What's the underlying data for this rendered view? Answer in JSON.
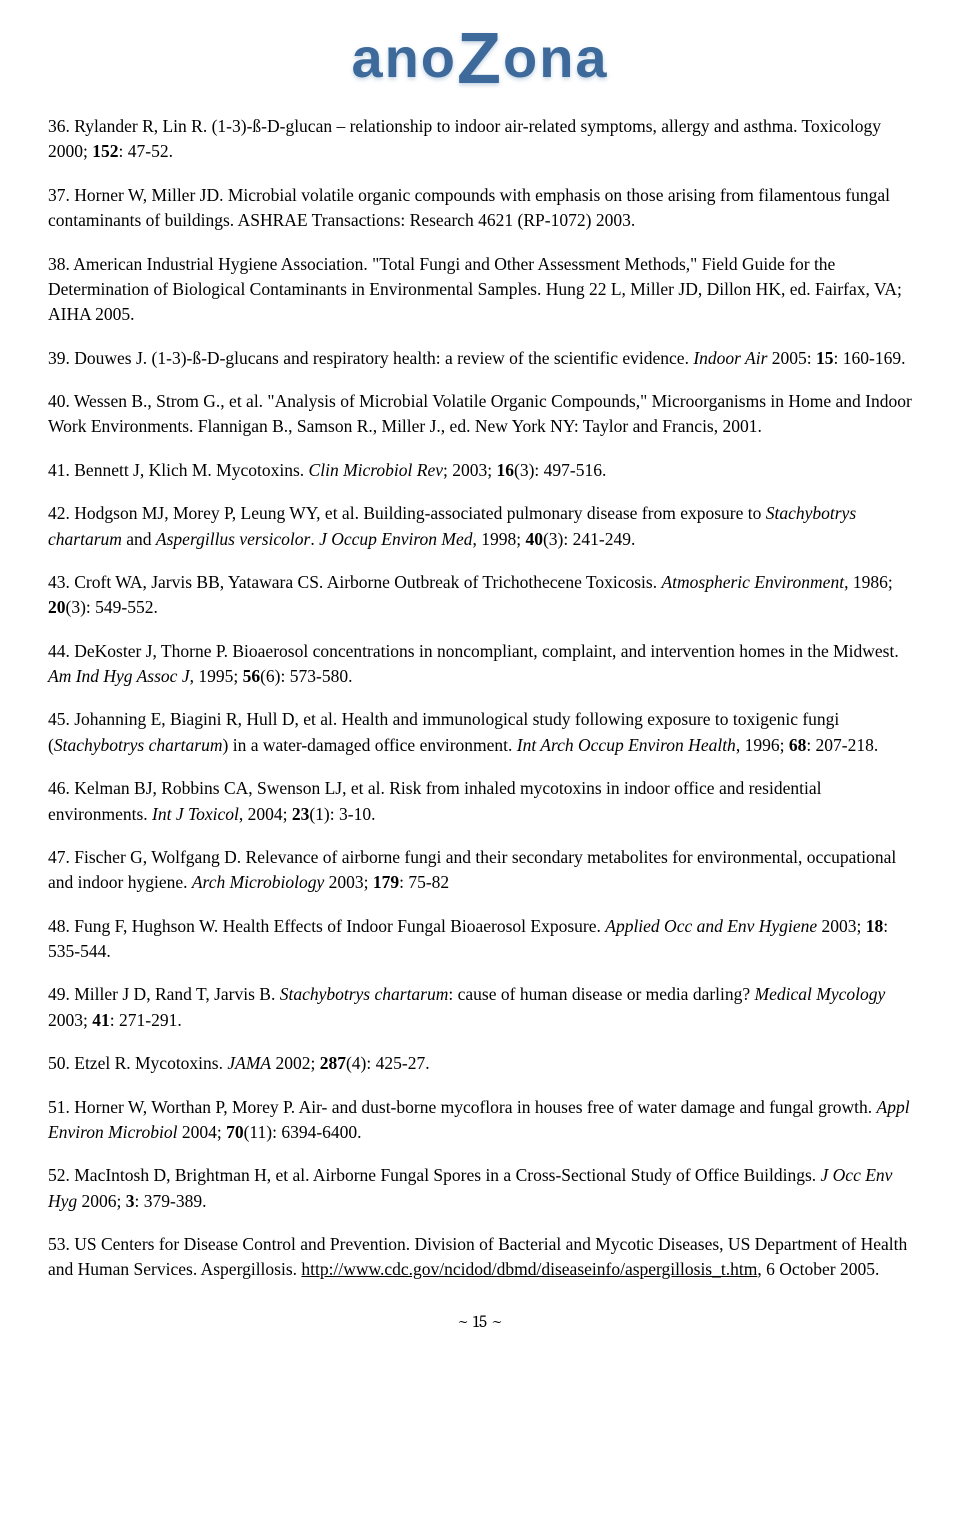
{
  "logo": {
    "part1": "ano",
    "mid": "Z",
    "part2": "ona"
  },
  "refs": {
    "r36": "36. Rylander R, Lin R. (1-3)-ß-D-glucan – relationship to indoor air-related symptoms, allergy and asthma. Toxicology 2000; <b>152</b>: 47-52.",
    "r37": "37. Horner W, Miller JD. Microbial volatile organic compounds with emphasis on those arising from filamentous fungal contaminants of buildings. ASHRAE Transactions: Research 4621 (RP-1072) 2003.",
    "r38": "38. American Industrial Hygiene Association. \"Total Fungi and Other Assessment Methods,\" Field Guide for the Determination of Biological Contaminants in Environmental Samples. Hung 22 L, Miller JD, Dillon HK, ed. Fairfax, VA; AIHA 2005.",
    "r39": "39. Douwes J. (1-3)-ß-D-glucans and respiratory health: a review of the scientific evidence. <em>Indoor Air</em> 2005: <b>15</b>: 160-169.",
    "r40": "40. Wessen B., Strom G., et al. \"Analysis of Microbial Volatile Organic Compounds,\" Microorganisms in Home and Indoor Work Environments. Flannigan B., Samson R., Miller J., ed. New York NY: Taylor and Francis, 2001.",
    "r41": "41. Bennett J, Klich M. Mycotoxins. <em>Clin Microbiol Rev</em>; 2003; <b>16</b>(3): 497-516.",
    "r42": "42. Hodgson MJ, Morey P, Leung WY, et al. Building-associated pulmonary disease from exposure to <em>Stachybotrys chartarum</em> and <em>Aspergillus versicolor</em>. <em>J Occup Environ Med</em>, 1998; <b>40</b>(3): 241-249.",
    "r43": "43. Croft WA, Jarvis BB, Yatawara CS. Airborne Outbreak of Trichothecene Toxicosis. <em>Atmospheric Environment</em>, 1986; <b>20</b>(3): 549-552.",
    "r44": "44. DeKoster J, Thorne P. Bioaerosol concentrations in noncompliant, complaint, and intervention homes in the Midwest. <em>Am Ind Hyg Assoc J</em>, 1995; <b>56</b>(6): 573-580.",
    "r45": "45. Johanning E, Biagini R, Hull D, et al. Health and immunological study following exposure to toxigenic fungi (<em>Stachybotrys chartarum</em>) in a water-damaged office environment. <em>Int Arch Occup Environ Health</em>, 1996; <b>68</b>: 207-218.",
    "r46": "46. Kelman BJ, Robbins CA, Swenson LJ, et al. Risk from inhaled mycotoxins in indoor office and residential environments. <em>Int J Toxicol</em>, 2004; <b>23</b>(1): 3-10.",
    "r47": "47. Fischer G, Wolfgang D. Relevance of airborne fungi and their secondary metabolites for environmental, occupational and indoor hygiene. <em>Arch Microbiology</em> 2003; <b>179</b>: 75-82",
    "r48": "48. Fung F, Hughson W. Health Effects of Indoor Fungal Bioaerosol Exposure. <em>Applied Occ and Env Hygiene</em> 2003; <b>18</b>: 535-544.",
    "r49": "49. Miller J D, Rand T, Jarvis B. <em>Stachybotrys chartarum</em>: cause of human disease or media darling? <em>Medical Mycology</em> 2003; <b>41</b>: 271-291.",
    "r50": "50. Etzel R. Mycotoxins. <em>JAMA</em> 2002; <b>287</b>(4): 425-27.",
    "r51": "51. Horner W, Worthan P, Morey P. Air- and dust-borne mycoflora in houses free of water damage and fungal growth. <em>Appl Environ Microbiol</em> 2004; <b>70</b>(11): 6394-6400.",
    "r52": "52. MacIntosh D, Brightman H, et al. Airborne Fungal Spores in a Cross-Sectional Study of Office Buildings. <em>J Occ Env Hyg</em> 2006; <b>3</b>: 379-389.",
    "r53": "53. US Centers for Disease Control and Prevention. Division of Bacterial and Mycotic Diseases, US Department of Health and Human Services. Aspergillosis. <a href=\"#\">http://www.cdc.gov/ncidod/dbmd/diseaseinfo/aspergillosis_t.htm</a>, 6 October 2005."
  },
  "page_number": "~ 15 ~"
}
